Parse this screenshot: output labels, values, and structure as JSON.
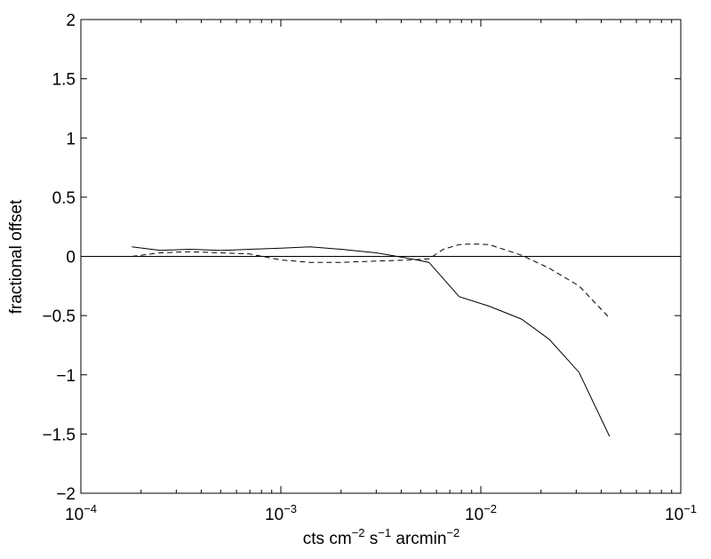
{
  "chart_data": {
    "type": "line",
    "title": "",
    "xlabel": {
      "base": "cts cm",
      "exp1": "−2",
      "mid1": " s",
      "exp2": "−1",
      "mid2": " arcmin",
      "exp3": "−2"
    },
    "ylabel": "fractional offset",
    "xscale": "log",
    "xlim": [
      0.0001,
      0.1
    ],
    "ylim": [
      -2,
      2
    ],
    "grid": false,
    "legend": "none",
    "xticks": [
      {
        "value": 0.0001,
        "base": "10",
        "exp": "−4"
      },
      {
        "value": 0.001,
        "base": "10",
        "exp": "−3"
      },
      {
        "value": 0.01,
        "base": "10",
        "exp": "−2"
      },
      {
        "value": 0.1,
        "base": "10",
        "exp": "−1"
      }
    ],
    "yticks": [
      {
        "value": 2,
        "label": "2"
      },
      {
        "value": 1.5,
        "label": "1.5"
      },
      {
        "value": 1,
        "label": "1"
      },
      {
        "value": 0.5,
        "label": "0.5"
      },
      {
        "value": 0,
        "label": "0"
      },
      {
        "value": -0.5,
        "label": "−0.5"
      },
      {
        "value": -1,
        "label": "−1"
      },
      {
        "value": -1.5,
        "label": "−1.5"
      },
      {
        "value": -2,
        "label": "−2"
      }
    ],
    "reference_line": {
      "y": 0
    },
    "series": [
      {
        "style": "solid",
        "x": [
          0.00018,
          0.00025,
          0.00035,
          0.0005,
          0.0007,
          0.001,
          0.0014,
          0.002,
          0.003,
          0.0045,
          0.0055,
          0.0078,
          0.011,
          0.016,
          0.022,
          0.031,
          0.044
        ],
        "y": [
          0.08,
          0.05,
          0.06,
          0.05,
          0.06,
          0.07,
          0.08,
          0.06,
          0.03,
          -0.02,
          -0.05,
          -0.34,
          -0.42,
          -0.53,
          -0.7,
          -0.98,
          -1.52
        ]
      },
      {
        "style": "dashed",
        "x": [
          0.00018,
          0.00025,
          0.00035,
          0.0005,
          0.0007,
          0.001,
          0.0014,
          0.002,
          0.003,
          0.0045,
          0.0055,
          0.0065,
          0.0078,
          0.009,
          0.011,
          0.013,
          0.016,
          0.022,
          0.031,
          0.044
        ],
        "y": [
          0.0,
          0.03,
          0.04,
          0.03,
          0.02,
          -0.03,
          -0.05,
          -0.05,
          -0.04,
          -0.03,
          -0.02,
          0.06,
          0.1,
          0.105,
          0.1,
          0.06,
          0.01,
          -0.1,
          -0.25,
          -0.52
        ]
      }
    ]
  }
}
